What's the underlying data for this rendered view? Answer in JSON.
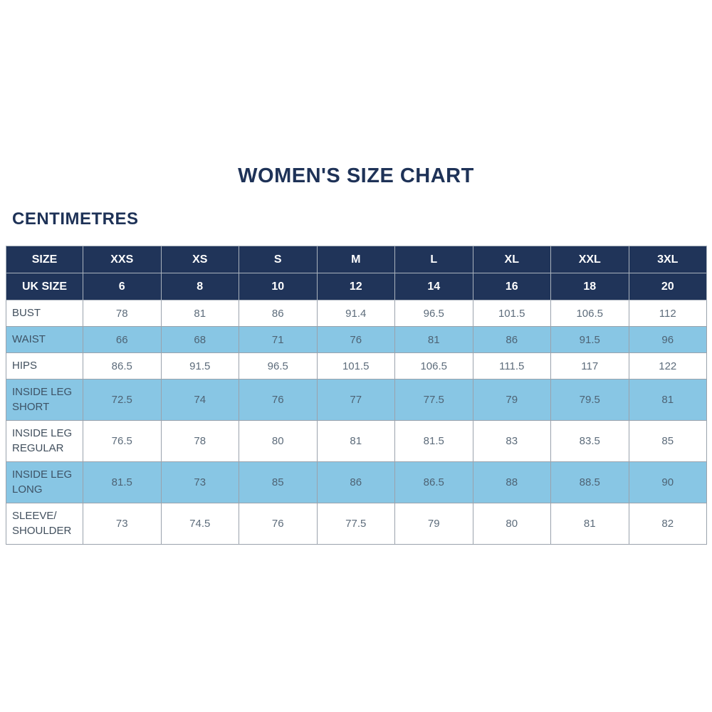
{
  "title": "WOMEN'S SIZE CHART",
  "unit_label": "CENTIMETRES",
  "colors": {
    "navy_header_bg": "#203459",
    "title_text": "#1e3257",
    "light_blue_row": "#88c6e4",
    "grid_line": "#9aa2ac",
    "label_text": "#414f5d",
    "value_text": "#5d6c7b"
  },
  "chart_data": {
    "type": "table",
    "title": "WOMEN'S SIZE CHART",
    "unit": "CENTIMETRES",
    "header_rows": [
      {
        "label": "SIZE",
        "values": [
          "XXS",
          "XS",
          "S",
          "M",
          "L",
          "XL",
          "XXL",
          "3XL"
        ]
      },
      {
        "label": "UK SIZE",
        "values": [
          "6",
          "8",
          "10",
          "12",
          "14",
          "16",
          "18",
          "20"
        ]
      }
    ],
    "rows": [
      {
        "label": "BUST",
        "values": [
          "78",
          "81",
          "86",
          "91.4",
          "96.5",
          "101.5",
          "106.5",
          "112"
        ]
      },
      {
        "label": "WAIST",
        "values": [
          "66",
          "68",
          "71",
          "76",
          "81",
          "86",
          "91.5",
          "96"
        ]
      },
      {
        "label": "HIPS",
        "values": [
          "86.5",
          "91.5",
          "96.5",
          "101.5",
          "106.5",
          "111.5",
          "117",
          "122"
        ]
      },
      {
        "label": "INSIDE LEG SHORT",
        "values": [
          "72.5",
          "74",
          "76",
          "77",
          "77.5",
          "79",
          "79.5",
          "81"
        ]
      },
      {
        "label": "INSIDE LEG REGULAR",
        "values": [
          "76.5",
          "78",
          "80",
          "81",
          "81.5",
          "83",
          "83.5",
          "85"
        ]
      },
      {
        "label": "INSIDE LEG LONG",
        "values": [
          "81.5",
          "73",
          "85",
          "86",
          "86.5",
          "88",
          "88.5",
          "90"
        ]
      },
      {
        "label": "SLEEVE/ SHOULDER",
        "values": [
          "73",
          "74.5",
          "76",
          "77.5",
          "79",
          "80",
          "81",
          "82"
        ]
      }
    ]
  }
}
